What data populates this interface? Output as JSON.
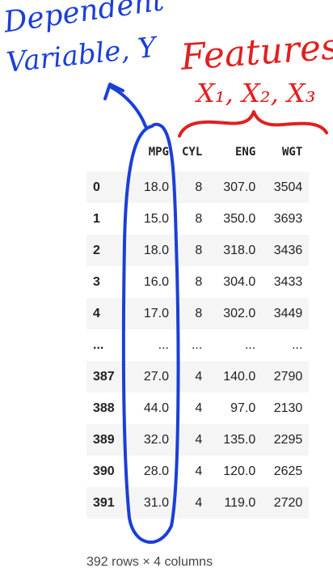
{
  "annotations": {
    "dependent_line1": "Dependent",
    "dependent_line2": "Variable, Y",
    "features_title": "Features",
    "features_vars": "X₁, X₂, X₃",
    "blue_color": "#1b3fd6",
    "red_color": "#e02020"
  },
  "table": {
    "columns": [
      "MPG",
      "CYL",
      "ENG",
      "WGT"
    ],
    "rows": [
      {
        "index": "0",
        "values": [
          "18.0",
          "8",
          "307.0",
          "3504"
        ]
      },
      {
        "index": "1",
        "values": [
          "15.0",
          "8",
          "350.0",
          "3693"
        ]
      },
      {
        "index": "2",
        "values": [
          "18.0",
          "8",
          "318.0",
          "3436"
        ]
      },
      {
        "index": "3",
        "values": [
          "16.0",
          "8",
          "304.0",
          "3433"
        ]
      },
      {
        "index": "4",
        "values": [
          "17.0",
          "8",
          "302.0",
          "3449"
        ]
      },
      {
        "index": "...",
        "values": [
          "...",
          "...",
          "...",
          "..."
        ]
      },
      {
        "index": "387",
        "values": [
          "27.0",
          "4",
          "140.0",
          "2790"
        ]
      },
      {
        "index": "388",
        "values": [
          "44.0",
          "4",
          "97.0",
          "2130"
        ]
      },
      {
        "index": "389",
        "values": [
          "32.0",
          "4",
          "135.0",
          "2295"
        ]
      },
      {
        "index": "390",
        "values": [
          "28.0",
          "4",
          "120.0",
          "2625"
        ]
      },
      {
        "index": "391",
        "values": [
          "31.0",
          "4",
          "119.0",
          "2720"
        ]
      }
    ],
    "footer": "392 rows × 4 columns"
  }
}
